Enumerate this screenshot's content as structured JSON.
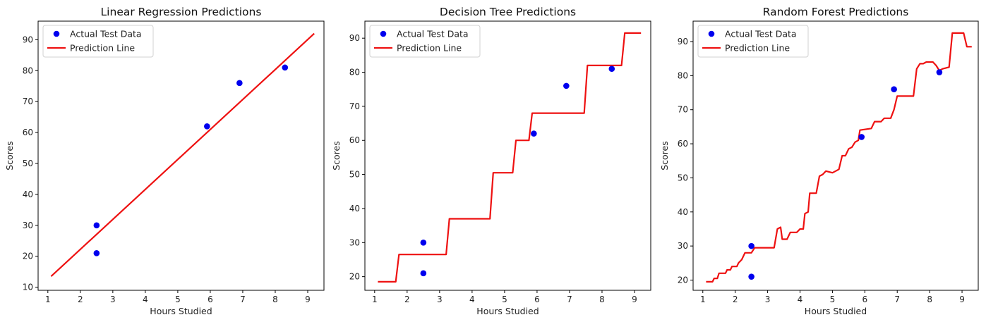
{
  "chart_data": [
    {
      "type": "scatter+line",
      "title": "Linear Regression Predictions",
      "xlabel": "Hours Studied",
      "ylabel": "Scores",
      "xlim": [
        0.7,
        9.5
      ],
      "ylim": [
        9,
        96
      ],
      "xticks": [
        1,
        2,
        3,
        4,
        5,
        6,
        7,
        8,
        9
      ],
      "yticks": [
        10,
        20,
        30,
        40,
        50,
        60,
        70,
        80,
        90
      ],
      "grid": false,
      "legend": {
        "position": "upper-left",
        "entries": [
          "Actual Test Data",
          "Prediction Line"
        ]
      },
      "series": [
        {
          "name": "Actual Test Data",
          "kind": "scatter",
          "color": "#0000ee",
          "points": [
            [
              2.5,
              21
            ],
            [
              2.5,
              30
            ],
            [
              5.9,
              62
            ],
            [
              6.9,
              76
            ],
            [
              8.3,
              81
            ]
          ]
        },
        {
          "name": "Prediction Line",
          "kind": "line",
          "color": "#ee1111",
          "points": [
            [
              1.1,
              13.5
            ],
            [
              9.2,
              92.0
            ]
          ]
        }
      ]
    },
    {
      "type": "scatter+line",
      "title": "Decision Tree Predictions",
      "xlabel": "Hours Studied",
      "ylabel": "Scores",
      "xlim": [
        0.7,
        9.5
      ],
      "ylim": [
        16,
        95
      ],
      "xticks": [
        1,
        2,
        3,
        4,
        5,
        6,
        7,
        8,
        9
      ],
      "yticks": [
        20,
        30,
        40,
        50,
        60,
        70,
        80,
        90
      ],
      "grid": false,
      "legend": {
        "position": "upper-left",
        "entries": [
          "Actual Test Data",
          "Prediction Line"
        ]
      },
      "series": [
        {
          "name": "Actual Test Data",
          "kind": "scatter",
          "color": "#0000ee",
          "points": [
            [
              2.5,
              21
            ],
            [
              2.5,
              30
            ],
            [
              5.9,
              62
            ],
            [
              6.9,
              76
            ],
            [
              8.3,
              81
            ]
          ]
        },
        {
          "name": "Prediction Line",
          "kind": "line",
          "color": "#ee1111",
          "points": [
            [
              1.1,
              18.5
            ],
            [
              1.65,
              18.5
            ],
            [
              1.75,
              26.5
            ],
            [
              3.2,
              26.5
            ],
            [
              3.3,
              37
            ],
            [
              4.55,
              37
            ],
            [
              4.65,
              50.5
            ],
            [
              5.25,
              50.5
            ],
            [
              5.35,
              60
            ],
            [
              5.75,
              60
            ],
            [
              5.85,
              68
            ],
            [
              7.45,
              68
            ],
            [
              7.55,
              82
            ],
            [
              8.6,
              82
            ],
            [
              8.7,
              91.5
            ],
            [
              9.2,
              91.5
            ]
          ]
        }
      ]
    },
    {
      "type": "scatter+line",
      "title": "Random Forest Predictions",
      "xlabel": "Hours Studied",
      "ylabel": "Scores",
      "xlim": [
        0.7,
        9.5
      ],
      "ylim": [
        17,
        96
      ],
      "xticks": [
        1,
        2,
        3,
        4,
        5,
        6,
        7,
        8,
        9
      ],
      "yticks": [
        20,
        30,
        40,
        50,
        60,
        70,
        80,
        90
      ],
      "grid": false,
      "legend": {
        "position": "upper-left",
        "entries": [
          "Actual Test Data",
          "Prediction Line"
        ]
      },
      "series": [
        {
          "name": "Actual Test Data",
          "kind": "scatter",
          "color": "#0000ee",
          "points": [
            [
              2.5,
              21
            ],
            [
              2.5,
              30
            ],
            [
              5.9,
              62
            ],
            [
              6.9,
              76
            ],
            [
              8.3,
              81
            ]
          ]
        },
        {
          "name": "Prediction Line",
          "kind": "line",
          "color": "#ee1111",
          "points": [
            [
              1.1,
              19.5
            ],
            [
              1.3,
              19.5
            ],
            [
              1.35,
              20.5
            ],
            [
              1.45,
              20.5
            ],
            [
              1.5,
              22
            ],
            [
              1.7,
              22
            ],
            [
              1.75,
              23
            ],
            [
              1.85,
              23
            ],
            [
              1.9,
              24
            ],
            [
              2.05,
              24
            ],
            [
              2.1,
              25
            ],
            [
              2.2,
              26
            ],
            [
              2.3,
              28
            ],
            [
              2.5,
              28
            ],
            [
              2.6,
              29.5
            ],
            [
              2.8,
              29.5
            ],
            [
              3.0,
              29.5
            ],
            [
              3.2,
              29.5
            ],
            [
              3.3,
              35
            ],
            [
              3.4,
              35.5
            ],
            [
              3.45,
              32
            ],
            [
              3.6,
              32
            ],
            [
              3.7,
              34
            ],
            [
              3.9,
              34
            ],
            [
              4.0,
              35
            ],
            [
              4.1,
              35
            ],
            [
              4.15,
              39.5
            ],
            [
              4.25,
              40
            ],
            [
              4.3,
              45.5
            ],
            [
              4.5,
              45.5
            ],
            [
              4.6,
              50.5
            ],
            [
              4.7,
              51
            ],
            [
              4.8,
              52
            ],
            [
              5.0,
              51.5
            ],
            [
              5.1,
              52
            ],
            [
              5.2,
              52.5
            ],
            [
              5.3,
              56.5
            ],
            [
              5.4,
              56.5
            ],
            [
              5.5,
              58.5
            ],
            [
              5.6,
              59
            ],
            [
              5.7,
              60.5
            ],
            [
              5.8,
              61
            ],
            [
              5.85,
              64
            ],
            [
              6.2,
              64.5
            ],
            [
              6.3,
              66.5
            ],
            [
              6.5,
              66.5
            ],
            [
              6.6,
              67.5
            ],
            [
              6.8,
              67.5
            ],
            [
              6.9,
              70
            ],
            [
              7.0,
              74
            ],
            [
              7.5,
              74
            ],
            [
              7.6,
              82
            ],
            [
              7.7,
              83.5
            ],
            [
              7.8,
              83.5
            ],
            [
              7.9,
              84
            ],
            [
              8.1,
              84
            ],
            [
              8.2,
              83
            ],
            [
              8.3,
              81.5
            ],
            [
              8.4,
              82
            ],
            [
              8.6,
              82.5
            ],
            [
              8.7,
              92.5
            ],
            [
              9.05,
              92.5
            ],
            [
              9.15,
              88.5
            ],
            [
              9.3,
              88.5
            ]
          ]
        }
      ]
    }
  ]
}
